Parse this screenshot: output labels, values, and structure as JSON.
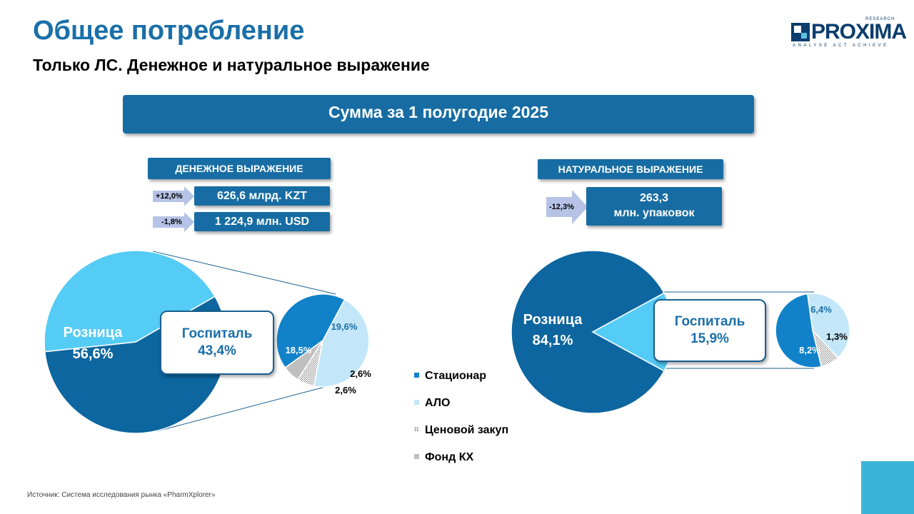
{
  "header": {
    "title": "Общее потребление",
    "subtitle": "Только ЛС. Денежное и натуральное выражение"
  },
  "logo": {
    "word": "PROXIMA",
    "small_top": "RESEARCH",
    "tagline": "ANALYSE ACT ACHIEVE"
  },
  "banner": "Сумма за 1 полугодие 2025",
  "money": {
    "header": "ДЕНЕЖНОЕ ВЫРАЖЕНИЕ",
    "kzt": {
      "change": "+12,0%",
      "value": "626,6 млрд. KZT"
    },
    "usd": {
      "change": "-1,8%",
      "value": "1 224,9 млн. USD"
    }
  },
  "natural": {
    "header": "НАТУРАЛЬНОЕ ВЫРАЖЕНИЕ",
    "change": "-12,3%",
    "value_line1": "263,3",
    "value_line2": "млн. упаковок"
  },
  "colors": {
    "retail": "#0d669f",
    "hospital": "#55ccf5",
    "stationary": "#1182c9",
    "alo": "#c3e7f8",
    "price": "#e8e8e8",
    "fund": "#bfbfbf",
    "accent": "#176da3"
  },
  "chart_data": [
    {
      "type": "pie",
      "name": "money-main",
      "categories": [
        "Розница",
        "Госпиталь"
      ],
      "values": [
        56.6,
        43.4
      ],
      "labels": [
        "56,6%",
        "43,4%"
      ]
    },
    {
      "type": "pie",
      "name": "money-hospital-breakdown",
      "categories": [
        "Стационар",
        "АЛО",
        "Ценовой закуп",
        "Фонд КХ"
      ],
      "values": [
        18.5,
        19.6,
        2.6,
        2.6
      ],
      "labels": [
        "18,5%",
        "19,6%",
        "2,6%",
        "2,6%"
      ]
    },
    {
      "type": "pie",
      "name": "natural-main",
      "categories": [
        "Розница",
        "Госпиталь"
      ],
      "values": [
        84.1,
        15.9
      ],
      "labels": [
        "84,1%",
        "15,9%"
      ]
    },
    {
      "type": "pie",
      "name": "natural-hospital-breakdown",
      "categories": [
        "Стационар",
        "АЛО",
        "Ценовой закуп"
      ],
      "values": [
        8.2,
        6.4,
        1.3
      ],
      "labels": [
        "8,2%",
        "6,4%",
        "1,3%"
      ]
    }
  ],
  "legend": [
    "Стационар",
    "АЛО",
    "Ценовой закуп",
    "Фонд КХ"
  ],
  "source": "Источник: Система исследования рынка «PharmXplorer»"
}
